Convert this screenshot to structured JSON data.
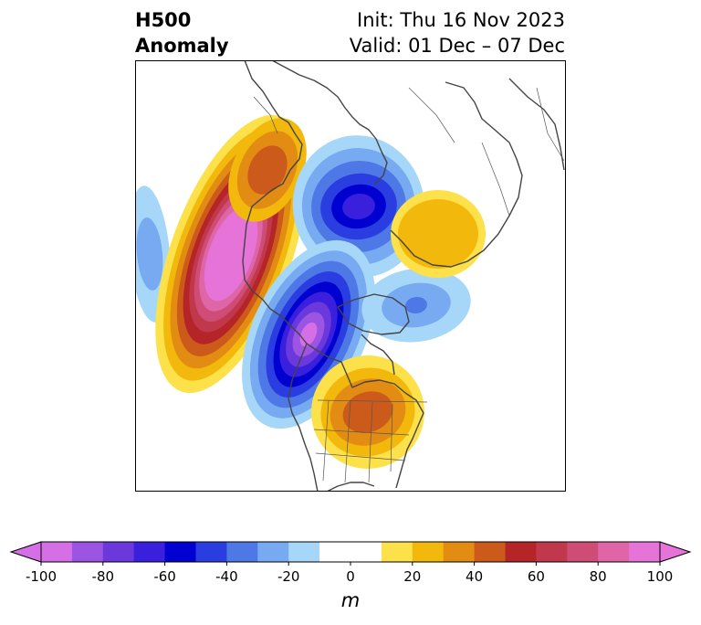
{
  "header": {
    "title_line1": "H500",
    "title_line2": "Anomaly",
    "init_label": "Init: Thu 16 Nov 2023",
    "valid_label": "Valid: 01 Dec – 07 Dec"
  },
  "map": {
    "field": "500 hPa geopotential height anomaly",
    "anomaly_centers": [
      {
        "type": "positive",
        "region": "Gulf of Alaska / NE Pacific",
        "peak_m": 100
      },
      {
        "type": "positive",
        "region": "Alaska / Yukon",
        "peak_m": 60
      },
      {
        "type": "positive",
        "region": "Eastern United States",
        "peak_m": 50
      },
      {
        "type": "positive",
        "region": "Scandinavia / NW Russia",
        "peak_m": 30
      },
      {
        "type": "negative",
        "region": "Western Canada",
        "peak_m": -80
      },
      {
        "type": "negative",
        "region": "Siberia / Arctic",
        "peak_m": -70
      },
      {
        "type": "negative",
        "region": "North Atlantic",
        "peak_m": -40
      },
      {
        "type": "negative",
        "region": "West Pacific",
        "peak_m": -30
      }
    ]
  },
  "colorbar": {
    "ticks": [
      "-100",
      "-80",
      "-60",
      "-40",
      "-20",
      "0",
      "20",
      "40",
      "60",
      "80",
      "100"
    ],
    "unit": "m",
    "levels": [
      -100,
      -90,
      -80,
      -70,
      -60,
      -50,
      -40,
      -30,
      -20,
      -10,
      10,
      20,
      30,
      40,
      50,
      60,
      70,
      80,
      90,
      100
    ],
    "colors": [
      "#d56fe6",
      "#9c54e2",
      "#6b38db",
      "#3a1fdc",
      "#0000d0",
      "#2a3de0",
      "#4e78e6",
      "#77aaf0",
      "#a6d7f8",
      "#ffffff",
      "#fde14b",
      "#f2b90c",
      "#e28c14",
      "#cc5b1b",
      "#b52527",
      "#c1384c",
      "#cf4c77",
      "#de66a6",
      "#e573d8"
    ]
  }
}
